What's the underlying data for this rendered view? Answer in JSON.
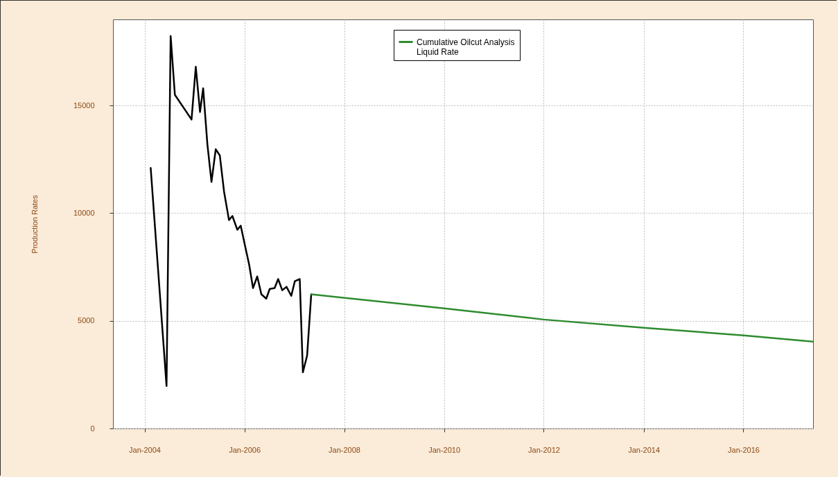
{
  "chart_data": {
    "type": "line",
    "ylabel": "Production Rates",
    "legend": "top",
    "grid": true,
    "line_style": "solid",
    "marker": "none",
    "xlim": [
      "2003-05-15",
      "2017-05-25"
    ],
    "ylim": [
      0,
      19000
    ],
    "yticks": [
      0,
      5000,
      10000,
      15000
    ],
    "xticks": [
      {
        "value": "2004-01-01",
        "label": "Jan-2004"
      },
      {
        "value": "2006-01-01",
        "label": "Jan-2006"
      },
      {
        "value": "2008-01-01",
        "label": "Jan-2008"
      },
      {
        "value": "2010-01-01",
        "label": "Jan-2010"
      },
      {
        "value": "2012-01-01",
        "label": "Jan-2012"
      },
      {
        "value": "2014-01-01",
        "label": "Jan-2014"
      },
      {
        "value": "2016-01-01",
        "label": "Jan-2016"
      }
    ],
    "series": [
      {
        "color": "#000000",
        "x": [
          "2004-02-15",
          "2004-06-10",
          "2004-07-10",
          "2004-08-10",
          "2004-12-10",
          "2005-01-10",
          "2005-02-10",
          "2005-03-05",
          "2005-04-05",
          "2005-05-05",
          "2005-06-05",
          "2005-07-05",
          "2005-08-05",
          "2005-09-10",
          "2005-10-05",
          "2005-11-10",
          "2005-12-05",
          "2006-01-05",
          "2006-02-05",
          "2006-03-05",
          "2006-04-05",
          "2006-05-05",
          "2006-06-10",
          "2006-07-05",
          "2006-08-10",
          "2006-09-05",
          "2006-10-05",
          "2006-11-05",
          "2006-12-10",
          "2007-01-05",
          "2007-02-10",
          "2007-03-05",
          "2007-04-05",
          "2007-05-05"
        ],
        "values": [
          12100,
          1970,
          18230,
          15500,
          14350,
          16800,
          14700,
          15800,
          13200,
          11450,
          12970,
          12680,
          11000,
          9680,
          9870,
          9230,
          9420,
          8500,
          7600,
          6520,
          7060,
          6230,
          6030,
          6480,
          6520,
          6940,
          6420,
          6580,
          6160,
          6840,
          6940,
          2610,
          3390,
          6230
        ]
      },
      {
        "name": "Cumulative Oilcut Analysis\nLiquid Rate",
        "color": "#2e8b2e",
        "x": [
          "2007-05-05",
          "2010-01-01",
          "2012-01-01",
          "2014-01-01",
          "2016-01-01",
          "2017-05-25"
        ],
        "values": [
          6230,
          5580,
          5060,
          4680,
          4320,
          4030
        ]
      }
    ]
  }
}
